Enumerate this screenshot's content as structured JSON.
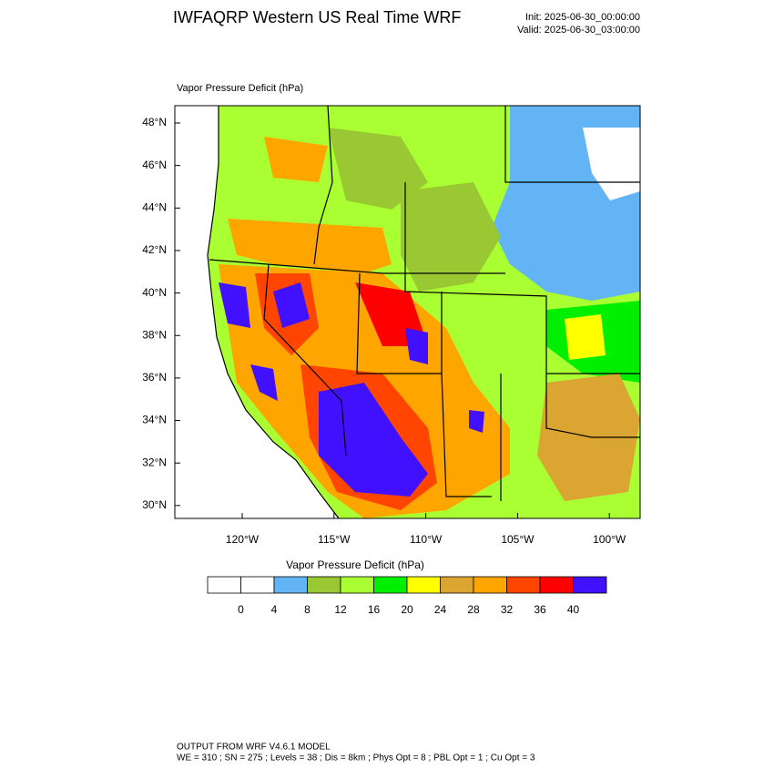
{
  "header": {
    "title": "IWFAQRP Western US Real Time WRF",
    "init": "Init: 2025-06-30_00:00:00",
    "valid": "Valid: 2025-06-30_03:00:00"
  },
  "map": {
    "title": "Vapor Pressure Deficit   (hPa)",
    "lat_labels": [
      "48°N",
      "46°N",
      "44°N",
      "42°N",
      "40°N",
      "38°N",
      "36°N",
      "34°N",
      "32°N",
      "30°N"
    ],
    "lon_labels": [
      "120°W",
      "115°W",
      "110°W",
      "105°W",
      "100°W"
    ]
  },
  "colorbar": {
    "title": "Vapor Pressure Deficit  (hPa)",
    "levels": [
      0,
      4,
      8,
      12,
      16,
      20,
      24,
      28,
      32,
      36,
      40
    ],
    "colors": [
      "#ffffff",
      "#ffffff",
      "#62b4f5",
      "#9ac832",
      "#aaff32",
      "#00ee00",
      "#ffff00",
      "#dba532",
      "#ffa500",
      "#ff4500",
      "#ff0000",
      "#4010ff"
    ]
  },
  "footer": {
    "line1": "OUTPUT FROM WRF V4.6.1 MODEL",
    "line2": "WE = 310 ; SN = 275 ; Levels = 38 ; Dis = 8km ; Phys Opt = 8 ; PBL Opt = 1 ; Cu Opt = 3"
  }
}
